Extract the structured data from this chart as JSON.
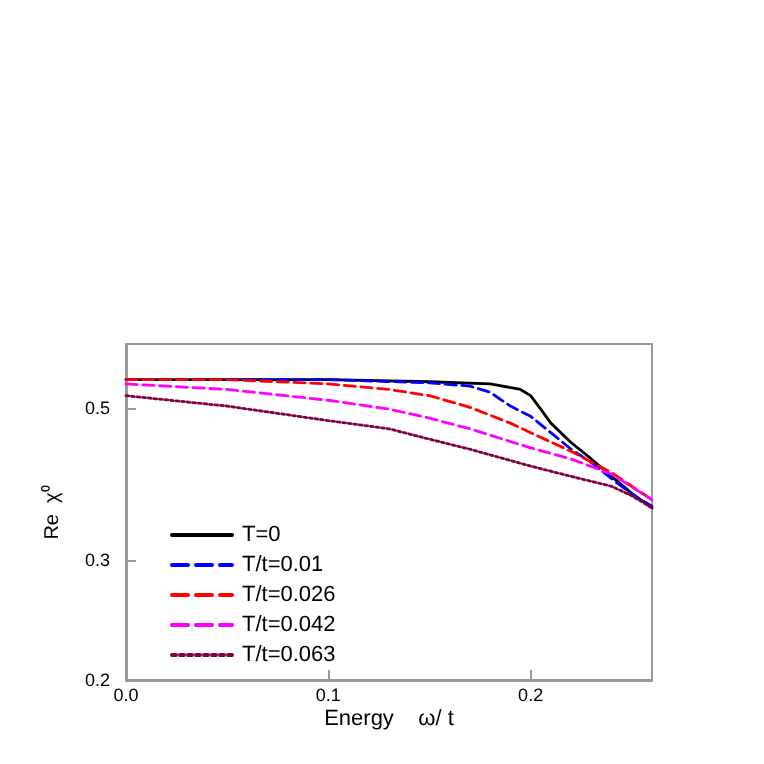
{
  "chart_data": {
    "type": "line",
    "xlabel": "Energy    ω/ t",
    "ylabel": "Re  χ⁰",
    "xlim": [
      0,
      0.26
    ],
    "xticks": [
      {
        "value": 0,
        "label": "0.0"
      },
      0.1,
      0.2
    ],
    "ylim": [
      0.2,
      0.62
    ],
    "yticks": [
      0.2,
      0.3,
      0.5
    ],
    "log": "y",
    "grid": false,
    "legend": "bottom left",
    "marker": "none",
    "series": [
      {
        "name": "T=0",
        "color": "#000000",
        "line_style": "solid",
        "x": [
          0,
          0.1,
          0.15,
          0.18,
          0.195,
          0.2,
          0.205,
          0.21,
          0.22,
          0.23,
          0.24,
          0.25,
          0.26
        ],
        "values": [
          0.55,
          0.55,
          0.546,
          0.542,
          0.532,
          0.521,
          0.498,
          0.475,
          0.445,
          0.421,
          0.397,
          0.375,
          0.357
        ]
      },
      {
        "name": "T/t=0.01",
        "color": "#0000ff",
        "line_style": "dashed",
        "x": [
          0,
          0.1,
          0.15,
          0.17,
          0.18,
          0.19,
          0.2,
          0.21,
          0.22,
          0.23,
          0.24,
          0.25,
          0.26
        ],
        "values": [
          0.55,
          0.55,
          0.544,
          0.538,
          0.527,
          0.503,
          0.486,
          0.46,
          0.435,
          0.416,
          0.394,
          0.374,
          0.359
        ]
      },
      {
        "name": "T/t=0.026",
        "color": "#ff0000",
        "line_style": "dashed",
        "x": [
          0,
          0.05,
          0.1,
          0.13,
          0.15,
          0.17,
          0.19,
          0.2,
          0.22,
          0.24,
          0.25,
          0.26
        ],
        "values": [
          0.55,
          0.55,
          0.542,
          0.532,
          0.521,
          0.501,
          0.475,
          0.46,
          0.432,
          0.402,
          0.384,
          0.367
        ]
      },
      {
        "name": "T/t=0.042",
        "color": "#ff00ff",
        "line_style": "dashed",
        "x": [
          0,
          0.05,
          0.1,
          0.13,
          0.15,
          0.17,
          0.2,
          0.22,
          0.24,
          0.26
        ],
        "values": [
          0.542,
          0.532,
          0.513,
          0.498,
          0.483,
          0.466,
          0.437,
          0.421,
          0.4,
          0.367
        ]
      },
      {
        "name": "T/t=0.063",
        "color": "#800040",
        "line_style": "dotted",
        "x": [
          0,
          0.05,
          0.1,
          0.13,
          0.15,
          0.17,
          0.2,
          0.22,
          0.24,
          0.25,
          0.26
        ],
        "values": [
          0.521,
          0.503,
          0.479,
          0.466,
          0.45,
          0.435,
          0.411,
          0.397,
          0.384,
          0.372,
          0.357
        ]
      }
    ]
  }
}
